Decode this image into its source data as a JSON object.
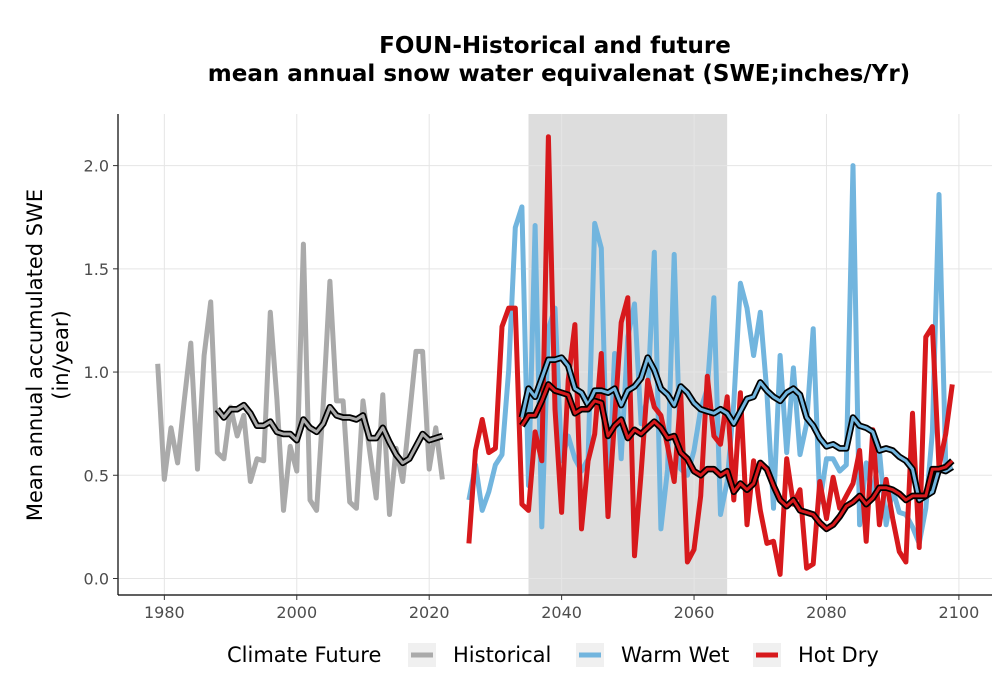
{
  "chart_data": {
    "type": "line",
    "title_line1": "FOUN-Historical and future",
    "title_line2": "mean annual snow water equivalenat (SWE;inches/Yr)",
    "xlabel": "",
    "ylabel_line1": "Mean annual accumulated SWE",
    "ylabel_line2": "(in/year)",
    "xlim": [
      1973,
      2105
    ],
    "ylim": [
      -0.08,
      2.25
    ],
    "x_ticks": [
      1980,
      2000,
      2020,
      2040,
      2060,
      2080,
      2100
    ],
    "y_ticks": [
      0.0,
      0.5,
      1.0,
      1.5,
      2.0
    ],
    "y_tick_labels": [
      "0.0",
      "0.5",
      "1.0",
      "1.5",
      "2.0"
    ],
    "shaded_period": [
      2035,
      2065
    ],
    "grid": true,
    "legend_title": "Climate Future",
    "legend_position": "bottom",
    "series": [
      {
        "name": "Historical",
        "color": "#aaaaaa",
        "x": [
          1979,
          1980,
          1981,
          1982,
          1983,
          1984,
          1985,
          1986,
          1987,
          1988,
          1989,
          1990,
          1991,
          1992,
          1993,
          1994,
          1995,
          1996,
          1997,
          1998,
          1999,
          2000,
          2001,
          2002,
          2003,
          2004,
          2005,
          2006,
          2007,
          2008,
          2009,
          2010,
          2011,
          2012,
          2013,
          2014,
          2015,
          2016,
          2017,
          2018,
          2019,
          2020,
          2021,
          2022
        ],
        "values": [
          1.04,
          0.48,
          0.73,
          0.56,
          0.86,
          1.14,
          0.53,
          1.08,
          1.34,
          0.61,
          0.58,
          0.83,
          0.69,
          0.79,
          0.47,
          0.58,
          0.57,
          1.29,
          0.87,
          0.33,
          0.64,
          0.52,
          1.62,
          0.38,
          0.33,
          0.85,
          1.44,
          0.86,
          0.86,
          0.37,
          0.34,
          0.86,
          0.62,
          0.39,
          0.89,
          0.31,
          0.63,
          0.47,
          0.78,
          1.1,
          1.1,
          0.53,
          0.73,
          0.48
        ]
      },
      {
        "name": "Warm Wet",
        "color": "#72b5de",
        "x": [
          2026,
          2027,
          2028,
          2029,
          2030,
          2031,
          2032,
          2033,
          2034,
          2035,
          2036,
          2037,
          2038,
          2039,
          2040,
          2041,
          2042,
          2043,
          2044,
          2045,
          2046,
          2047,
          2048,
          2049,
          2050,
          2051,
          2052,
          2053,
          2054,
          2055,
          2056,
          2057,
          2058,
          2059,
          2060,
          2061,
          2062,
          2063,
          2064,
          2065,
          2066,
          2067,
          2068,
          2069,
          2070,
          2071,
          2072,
          2073,
          2074,
          2075,
          2076,
          2077,
          2078,
          2079,
          2080,
          2081,
          2082,
          2083,
          2084,
          2085,
          2086,
          2087,
          2088,
          2089,
          2090,
          2091,
          2092,
          2093,
          2094,
          2095,
          2096,
          2097,
          2098,
          2099
        ],
        "values": [
          0.38,
          0.55,
          0.33,
          0.42,
          0.55,
          0.6,
          1.01,
          1.7,
          1.8,
          0.45,
          1.71,
          0.25,
          1.21,
          1.31,
          0.57,
          0.69,
          0.58,
          0.52,
          0.58,
          1.72,
          1.6,
          0.32,
          1.09,
          0.58,
          1.17,
          1.33,
          0.75,
          0.88,
          1.58,
          0.24,
          0.53,
          1.57,
          0.53,
          0.5,
          0.62,
          0.82,
          0.92,
          1.36,
          0.31,
          0.47,
          0.85,
          1.43,
          1.31,
          1.08,
          1.29,
          0.9,
          0.34,
          1.08,
          0.61,
          1.02,
          0.6,
          0.75,
          1.21,
          0.37,
          0.58,
          0.58,
          0.52,
          0.55,
          2.0,
          0.26,
          0.56,
          0.4,
          0.62,
          0.26,
          0.43,
          0.32,
          0.31,
          0.25,
          0.17,
          0.34,
          0.71,
          1.86,
          0.55,
          0.55
        ]
      },
      {
        "name": "Hot Dry",
        "color": "#d7191c",
        "x": [
          2026,
          2027,
          2028,
          2029,
          2030,
          2031,
          2032,
          2033,
          2034,
          2035,
          2036,
          2037,
          2038,
          2039,
          2040,
          2041,
          2042,
          2043,
          2044,
          2045,
          2046,
          2047,
          2048,
          2049,
          2050,
          2051,
          2052,
          2053,
          2054,
          2055,
          2056,
          2057,
          2058,
          2059,
          2060,
          2061,
          2062,
          2063,
          2064,
          2065,
          2066,
          2067,
          2068,
          2069,
          2070,
          2071,
          2072,
          2073,
          2074,
          2075,
          2076,
          2077,
          2078,
          2079,
          2080,
          2081,
          2082,
          2083,
          2084,
          2085,
          2086,
          2087,
          2088,
          2089,
          2090,
          2091,
          2092,
          2093,
          2094,
          2095,
          2096,
          2097,
          2098,
          2099
        ],
        "values": [
          0.17,
          0.62,
          0.77,
          0.61,
          0.63,
          1.22,
          1.31,
          1.31,
          0.36,
          0.33,
          0.71,
          0.57,
          2.14,
          0.82,
          0.32,
          0.96,
          1.23,
          0.24,
          0.57,
          0.7,
          1.09,
          0.3,
          0.77,
          1.24,
          1.36,
          0.11,
          0.51,
          0.96,
          0.83,
          0.79,
          0.64,
          0.47,
          0.89,
          0.08,
          0.14,
          0.4,
          0.98,
          0.69,
          0.65,
          0.88,
          0.38,
          0.9,
          0.26,
          0.57,
          0.33,
          0.17,
          0.18,
          0.02,
          0.58,
          0.36,
          0.43,
          0.05,
          0.07,
          0.47,
          0.29,
          0.49,
          0.34,
          0.4,
          0.46,
          0.62,
          0.18,
          0.72,
          0.26,
          0.48,
          0.29,
          0.13,
          0.08,
          0.8,
          0.15,
          1.17,
          1.22,
          0.54,
          0.7,
          0.94
        ]
      }
    ],
    "rolling_means": [
      {
        "color": "#aaaaaa",
        "x": [
          1988,
          1989,
          1990,
          1991,
          1992,
          1993,
          1994,
          1995,
          1996,
          1997,
          1998,
          1999,
          2000,
          2001,
          2002,
          2003,
          2004,
          2005,
          2006,
          2007,
          2008,
          2009,
          2010,
          2011,
          2012,
          2013,
          2014,
          2015,
          2016,
          2017,
          2018,
          2019,
          2020,
          2021,
          2022
        ],
        "values": [
          0.82,
          0.78,
          0.82,
          0.82,
          0.84,
          0.8,
          0.74,
          0.74,
          0.76,
          0.71,
          0.7,
          0.7,
          0.67,
          0.77,
          0.73,
          0.71,
          0.75,
          0.83,
          0.79,
          0.78,
          0.78,
          0.77,
          0.79,
          0.68,
          0.68,
          0.73,
          0.66,
          0.6,
          0.56,
          0.58,
          0.64,
          0.7,
          0.67,
          0.68,
          0.69
        ]
      },
      {
        "color": "#72b5de",
        "x": [
          2034,
          2035,
          2036,
          2037,
          2038,
          2039,
          2040,
          2041,
          2042,
          2043,
          2044,
          2045,
          2046,
          2047,
          2048,
          2049,
          2050,
          2051,
          2052,
          2053,
          2054,
          2055,
          2056,
          2057,
          2058,
          2059,
          2060,
          2061,
          2062,
          2063,
          2064,
          2065,
          2066,
          2067,
          2068,
          2069,
          2070,
          2071,
          2072,
          2073,
          2074,
          2075,
          2076,
          2077,
          2078,
          2079,
          2080,
          2081,
          2082,
          2083,
          2084,
          2085,
          2086,
          2087,
          2088,
          2089,
          2090,
          2091,
          2092,
          2093,
          2094,
          2095,
          2096,
          2097,
          2098,
          2099
        ],
        "values": [
          0.78,
          0.92,
          0.88,
          0.97,
          1.06,
          1.06,
          1.07,
          1.03,
          0.92,
          0.9,
          0.84,
          0.91,
          0.91,
          0.9,
          0.92,
          0.84,
          0.91,
          0.93,
          0.97,
          1.07,
          1.01,
          0.92,
          0.89,
          0.84,
          0.93,
          0.9,
          0.85,
          0.82,
          0.81,
          0.8,
          0.82,
          0.8,
          0.75,
          0.81,
          0.87,
          0.88,
          0.95,
          0.91,
          0.88,
          0.86,
          0.9,
          0.92,
          0.89,
          0.78,
          0.74,
          0.68,
          0.64,
          0.65,
          0.63,
          0.63,
          0.78,
          0.74,
          0.73,
          0.71,
          0.62,
          0.63,
          0.62,
          0.59,
          0.57,
          0.53,
          0.38,
          0.4,
          0.42,
          0.53,
          0.52,
          0.54
        ]
      },
      {
        "color": "#d7191c",
        "x": [
          2034,
          2035,
          2036,
          2037,
          2038,
          2039,
          2040,
          2041,
          2042,
          2043,
          2044,
          2045,
          2046,
          2047,
          2048,
          2049,
          2050,
          2051,
          2052,
          2053,
          2054,
          2055,
          2056,
          2057,
          2058,
          2059,
          2060,
          2061,
          2062,
          2063,
          2064,
          2065,
          2066,
          2067,
          2068,
          2069,
          2070,
          2071,
          2072,
          2073,
          2074,
          2075,
          2076,
          2077,
          2078,
          2079,
          2080,
          2081,
          2082,
          2083,
          2084,
          2085,
          2086,
          2087,
          2088,
          2089,
          2090,
          2091,
          2092,
          2093,
          2094,
          2095,
          2096,
          2097,
          2098,
          2099
        ],
        "values": [
          0.74,
          0.79,
          0.79,
          0.86,
          0.94,
          0.91,
          0.9,
          0.89,
          0.8,
          0.82,
          0.82,
          0.86,
          0.85,
          0.69,
          0.74,
          0.77,
          0.68,
          0.72,
          0.7,
          0.73,
          0.76,
          0.73,
          0.68,
          0.69,
          0.61,
          0.58,
          0.52,
          0.5,
          0.53,
          0.53,
          0.5,
          0.52,
          0.42,
          0.46,
          0.43,
          0.46,
          0.56,
          0.53,
          0.45,
          0.38,
          0.35,
          0.38,
          0.33,
          0.32,
          0.31,
          0.27,
          0.24,
          0.26,
          0.3,
          0.35,
          0.37,
          0.4,
          0.36,
          0.39,
          0.44,
          0.44,
          0.43,
          0.41,
          0.38,
          0.4,
          0.4,
          0.4,
          0.53,
          0.53,
          0.54,
          0.57
        ]
      }
    ]
  }
}
